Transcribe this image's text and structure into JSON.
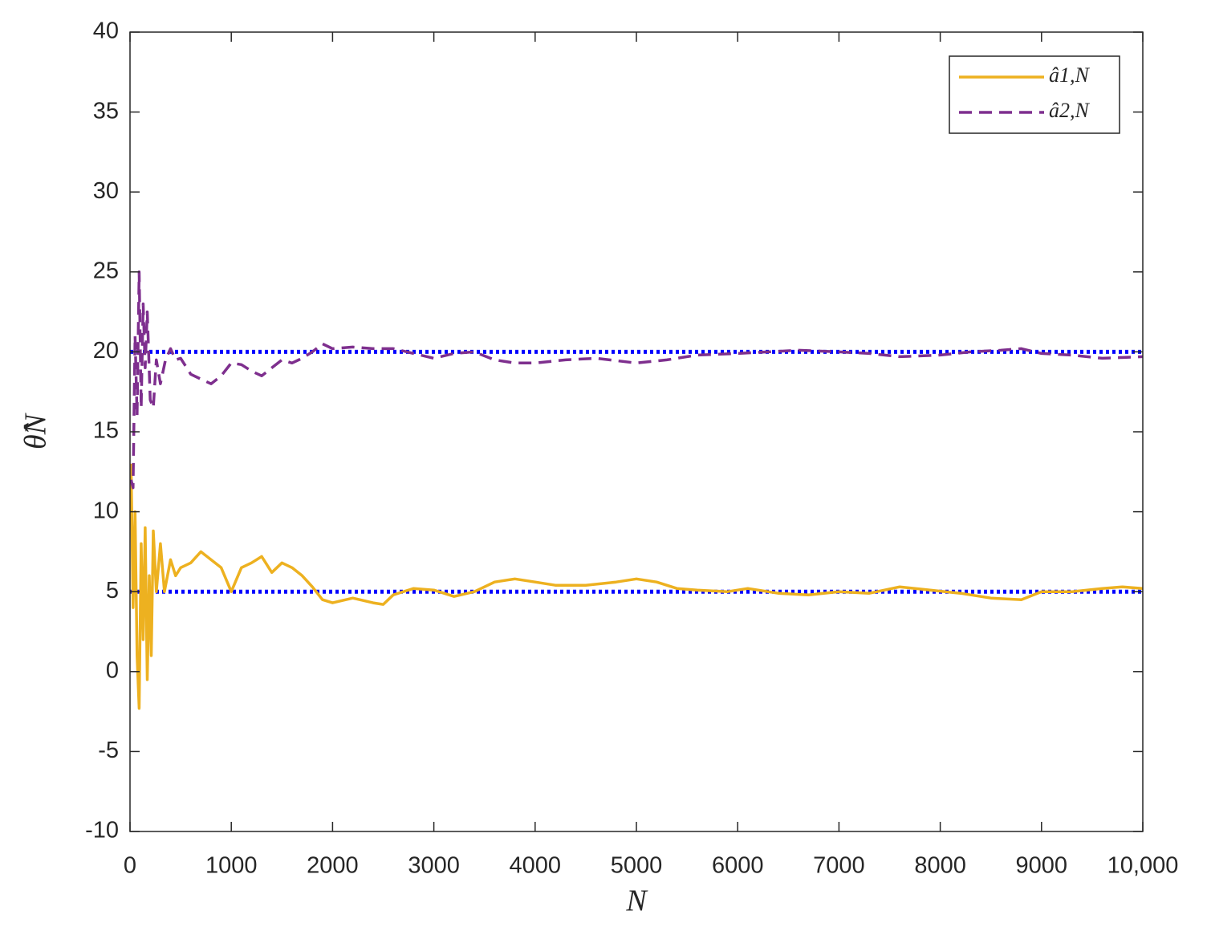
{
  "chart_data": {
    "type": "line",
    "x_label": "N",
    "y_label": "θ̂N",
    "xlim": [
      0,
      10000
    ],
    "ylim": [
      -10,
      40
    ],
    "xticks": [
      0,
      1000,
      2000,
      3000,
      4000,
      5000,
      6000,
      7000,
      8000,
      9000,
      {
        "value": 10000,
        "label": "10,000"
      }
    ],
    "yticks": [
      -10,
      -5,
      0,
      5,
      10,
      15,
      20,
      25,
      30,
      35,
      40
    ],
    "hlines": [
      5,
      20
    ],
    "hline_color": "#0000ff",
    "legend": "upper right",
    "series": [
      {
        "name": "â1,N",
        "color": "#edb120",
        "dash": false,
        "x": [
          10,
          30,
          50,
          70,
          90,
          110,
          130,
          150,
          170,
          190,
          210,
          230,
          260,
          300,
          340,
          400,
          450,
          500,
          600,
          700,
          800,
          900,
          1000,
          1100,
          1200,
          1300,
          1400,
          1500,
          1600,
          1700,
          1800,
          1900,
          2000,
          2200,
          2400,
          2500,
          2600,
          2800,
          3000,
          3200,
          3400,
          3600,
          3800,
          4000,
          4200,
          4500,
          4800,
          5000,
          5200,
          5400,
          5600,
          5900,
          6100,
          6400,
          6700,
          7000,
          7300,
          7600,
          7900,
          8200,
          8500,
          8800,
          9000,
          9300,
          9600,
          9800,
          10000
        ],
        "values": [
          13,
          4,
          10,
          1,
          -2.3,
          8,
          2,
          9,
          -0.5,
          6,
          1,
          8.8,
          5,
          8,
          5,
          7,
          6,
          6.5,
          6.8,
          7.5,
          7,
          6.5,
          5,
          6.5,
          6.8,
          7.2,
          6.2,
          6.8,
          6.5,
          6,
          5.3,
          4.5,
          4.3,
          4.6,
          4.3,
          4.2,
          4.8,
          5.2,
          5.1,
          4.7,
          5,
          5.6,
          5.8,
          5.6,
          5.4,
          5.4,
          5.6,
          5.8,
          5.6,
          5.2,
          5.1,
          5,
          5.2,
          4.9,
          4.8,
          5,
          4.9,
          5.3,
          5.1,
          4.9,
          4.6,
          4.5,
          5,
          5,
          5.2,
          5.3,
          5.2
        ]
      },
      {
        "name": "â2,N",
        "color": "#7e2f8e",
        "dash": true,
        "x": [
          10,
          30,
          50,
          70,
          90,
          110,
          130,
          150,
          170,
          200,
          230,
          260,
          300,
          350,
          400,
          450,
          500,
          600,
          700,
          800,
          900,
          1000,
          1100,
          1200,
          1300,
          1400,
          1500,
          1600,
          1700,
          1800,
          1900,
          2000,
          2200,
          2400,
          2600,
          2800,
          3000,
          3200,
          3400,
          3600,
          3800,
          4000,
          4300,
          4600,
          5000,
          5300,
          5600,
          6000,
          6300,
          6600,
          7000,
          7300,
          7600,
          8000,
          8300,
          8600,
          8800,
          9000,
          9300,
          9600,
          10000
        ],
        "values": [
          12,
          11.5,
          21,
          16,
          25,
          16.5,
          23,
          19,
          22.5,
          17,
          16.5,
          19.5,
          18,
          19.5,
          20.2,
          19.5,
          19.6,
          18.6,
          18.3,
          18,
          18.5,
          19.3,
          19.2,
          18.8,
          18.5,
          19,
          19.5,
          19.3,
          19.6,
          20,
          20.5,
          20.2,
          20.3,
          20.2,
          20.2,
          19.9,
          19.6,
          19.9,
          20,
          19.5,
          19.3,
          19.3,
          19.5,
          19.6,
          19.3,
          19.5,
          19.8,
          19.9,
          20,
          20.1,
          20,
          19.9,
          19.7,
          19.8,
          20,
          20.1,
          20.2,
          19.9,
          19.8,
          19.6,
          19.7
        ]
      }
    ]
  }
}
